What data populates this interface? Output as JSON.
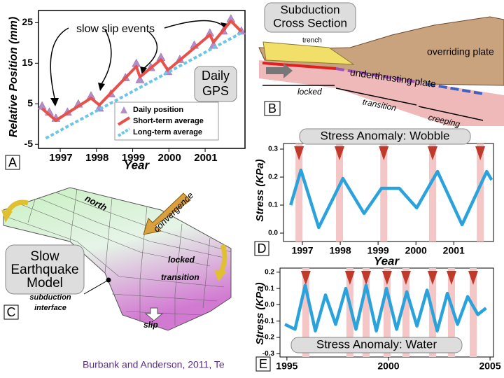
{
  "chart_data": [
    {
      "type": "line",
      "title": "slow slip events",
      "annotation": [
        "Daily",
        "GPS"
      ],
      "panel": "A",
      "x_label": "Year",
      "y_label": "Relative Position (mm)",
      "xlim": [
        1996.4,
        2002.1
      ],
      "xticks": [
        1997,
        1998,
        1999,
        2000,
        2001
      ],
      "ylim": [
        -6,
        28
      ],
      "yticks": [
        -5,
        5,
        15,
        25
      ],
      "legend": "lower right",
      "series": [
        {
          "name": "Daily position",
          "color": "#b48cc8",
          "marker": "triangle",
          "x": [
            1996.5,
            1996.7,
            1996.88,
            1997.2,
            1997.5,
            1997.85,
            1998.08,
            1998.4,
            1998.8,
            1999.1,
            1999.2,
            1999.5,
            1999.78,
            1999.97,
            2000.3,
            2000.7,
            2001.13,
            2001.23,
            2001.5,
            2001.71,
            2002.0
          ],
          "values": [
            4.5,
            3,
            1.5,
            3,
            5,
            7,
            4,
            7.5,
            11.5,
            15,
            11,
            14,
            16.5,
            13,
            16,
            19.5,
            22.5,
            19.5,
            23,
            26,
            23
          ]
        },
        {
          "name": "Short-term average",
          "color": "#e8504a",
          "x": [
            1996.5,
            1996.88,
            1997.85,
            1998.08,
            1999.1,
            1999.2,
            1999.78,
            1999.97,
            2001.13,
            2001.23,
            2001.71,
            2002.0
          ],
          "values": [
            3.8,
            0.9,
            6.4,
            4.7,
            14.2,
            11.6,
            15.9,
            13.3,
            22,
            20.2,
            25.4,
            22.8
          ]
        },
        {
          "name": "Long-term average",
          "color": "#6ec6e6",
          "dashed": true,
          "x": [
            1996.6,
            2002.0
          ],
          "values": [
            -3.5,
            22.5
          ]
        }
      ]
    },
    {
      "type": "line",
      "title": "Stress Anomaly: Wobble",
      "panel": "D",
      "x_label": "Year",
      "y_label": "Stress  (KPa)",
      "xlim": [
        1996.5,
        2002.05
      ],
      "xticks": [
        1997,
        1998,
        1999,
        2000,
        2001
      ],
      "ylim": [
        -0.03,
        0.32
      ],
      "yticks": [
        {
          "value": 0,
          "label": "0.0"
        },
        0.1,
        0.2,
        0.3
      ],
      "events": [
        1996.91,
        1997.98,
        1999.15,
        2000.44,
        2001.7
      ],
      "event_color": "#c0392b",
      "series": [
        {
          "color": "#2aa3dc",
          "x": [
            1996.69,
            1996.96,
            1997.43,
            1998.07,
            1998.63,
            1999.09,
            1999.56,
            2000.02,
            2000.57,
            2001.22,
            2001.87,
            2002.0
          ],
          "values": [
            0.1,
            0.225,
            0.02,
            0.195,
            0.07,
            0.16,
            0.16,
            0.09,
            0.22,
            0.03,
            0.22,
            0.19
          ]
        }
      ]
    },
    {
      "type": "line",
      "title": "Stress Anomaly: Water",
      "panel": "E",
      "y_label": "Stress  (KPa)",
      "xlim": [
        1994.66,
        2005.17
      ],
      "xticks": [
        1995,
        2000,
        2005
      ],
      "ylim": [
        -0.32,
        0.225
      ],
      "yticks": [
        0.2,
        0.1,
        {
          "value": 0,
          "label": "0.0"
        },
        -0.1,
        -0.2,
        -0.3
      ],
      "events": [
        1995.93,
        1998.1,
        1998.9,
        1999.93,
        2000.86,
        2002.17,
        2003.1,
        2004.17
      ],
      "event_color": "#c0392b",
      "series": [
        {
          "color": "#2aa3dc",
          "x": [
            1994.9,
            1995.4,
            1995.9,
            1996.4,
            1996.9,
            1997.4,
            1997.9,
            1998.4,
            1998.9,
            1999.4,
            1999.9,
            2000.4,
            2000.9,
            2001.4,
            2001.9,
            2002.4,
            2002.9,
            2003.4,
            2003.9,
            2004.4,
            2004.8
          ],
          "values": [
            -0.12,
            -0.15,
            0.12,
            -0.16,
            0.06,
            -0.12,
            0.1,
            -0.15,
            0.12,
            -0.16,
            0.1,
            -0.15,
            0.08,
            -0.13,
            0.09,
            -0.16,
            0.07,
            -0.12,
            0.05,
            -0.06,
            -0.02
          ]
        }
      ]
    }
  ],
  "diagrams": {
    "b": {
      "title": [
        "Subduction",
        "Cross Section"
      ],
      "trench": "trench",
      "overriding_plate": "overriding plate",
      "underthrusting_plate": "underthrusting plate",
      "locked": "locked",
      "transition": "transition",
      "creeping": "creeping",
      "panel": "B"
    },
    "c": {
      "north": "north",
      "convergence": "convergence",
      "title": [
        "Slow",
        "Earthquake",
        "Model"
      ],
      "locked": "locked",
      "transition": "transition",
      "interface": [
        "subduction",
        "interface"
      ],
      "slip": "slip",
      "panel": "C"
    }
  },
  "caption": "Burbank and Anderson, 2011, Te"
}
